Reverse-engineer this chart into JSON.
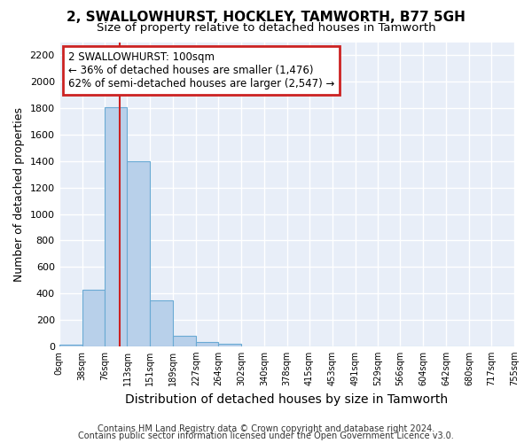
{
  "title_line1": "2, SWALLOWHURST, HOCKLEY, TAMWORTH, B77 5GH",
  "title_line2": "Size of property relative to detached houses in Tamworth",
  "xlabel": "Distribution of detached houses by size in Tamworth",
  "ylabel": "Number of detached properties",
  "footer_line1": "Contains HM Land Registry data © Crown copyright and database right 2024.",
  "footer_line2": "Contains public sector information licensed under the Open Government Licence v3.0.",
  "annotation_line1": "2 SWALLOWHURST: 100sqm",
  "annotation_line2": "← 36% of detached houses are smaller (1,476)",
  "annotation_line3": "62% of semi-detached houses are larger (2,547) →",
  "property_size": 100,
  "bin_edges": [
    0,
    38,
    76,
    113,
    151,
    189,
    227,
    264,
    302,
    340,
    378,
    415,
    453,
    491,
    529,
    566,
    604,
    642,
    680,
    717,
    755
  ],
  "bar_heights": [
    15,
    430,
    1810,
    1400,
    350,
    80,
    30,
    20,
    0,
    0,
    0,
    0,
    0,
    0,
    0,
    0,
    0,
    0,
    0,
    0
  ],
  "bar_color": "#b8d0ea",
  "bar_edge_color": "#6aaad4",
  "vline_color": "#cc2222",
  "ylim": [
    0,
    2300
  ],
  "yticks": [
    0,
    200,
    400,
    600,
    800,
    1000,
    1200,
    1400,
    1600,
    1800,
    2000,
    2200
  ],
  "bg_color": "#e8eef8",
  "annotation_box_color": "#cc2222",
  "grid_color": "#ffffff",
  "title1_fontsize": 11,
  "title2_fontsize": 9.5,
  "xlabel_fontsize": 10,
  "ylabel_fontsize": 9,
  "tick_fontsize": 8,
  "footer_fontsize": 7
}
